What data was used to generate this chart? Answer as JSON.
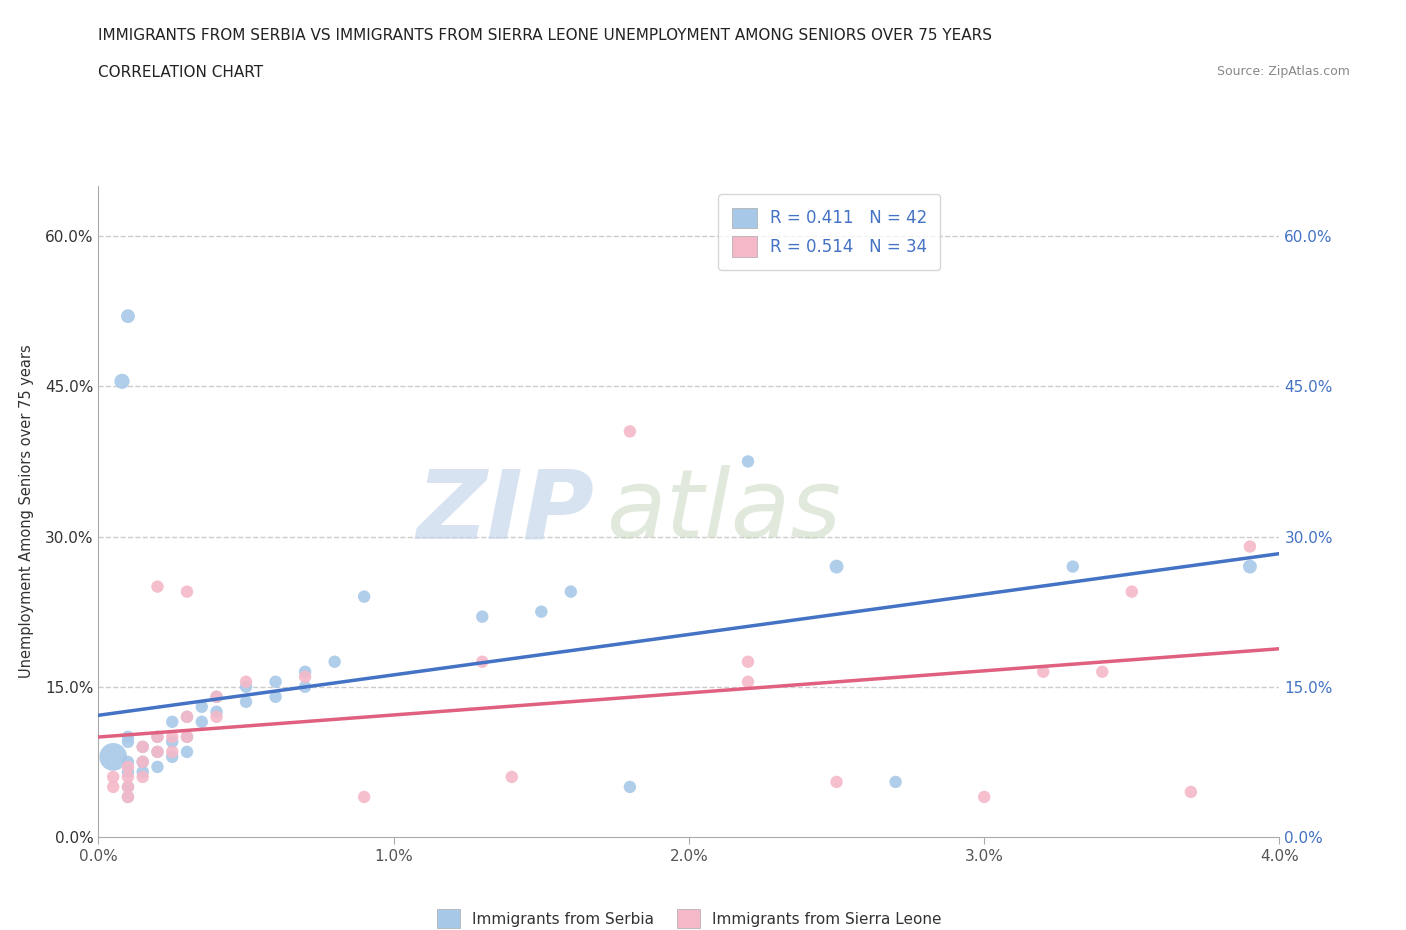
{
  "title_line1": "IMMIGRANTS FROM SERBIA VS IMMIGRANTS FROM SIERRA LEONE UNEMPLOYMENT AMONG SENIORS OVER 75 YEARS",
  "title_line2": "CORRELATION CHART",
  "source_text": "Source: ZipAtlas.com",
  "ylabel": "Unemployment Among Seniors over 75 years",
  "watermark_zip": "ZIP",
  "watermark_atlas": "atlas",
  "xlim": [
    0.0,
    0.04
  ],
  "ylim": [
    0.0,
    0.65
  ],
  "yticks": [
    0.0,
    0.15,
    0.3,
    0.45,
    0.6
  ],
  "ytick_labels": [
    "0.0%",
    "15.0%",
    "30.0%",
    "45.0%",
    "60.0%"
  ],
  "xticks": [
    0.0,
    0.01,
    0.02,
    0.03,
    0.04
  ],
  "xtick_labels": [
    "0.0%",
    "1.0%",
    "2.0%",
    "3.0%",
    "4.0%"
  ],
  "legend_r1": "R = 0.411",
  "legend_n1": "N = 42",
  "legend_r2": "R = 0.514",
  "legend_n2": "N = 34",
  "serbia_color": "#a8c8e8",
  "sierra_leone_color": "#f4b8c8",
  "serbia_line_color": "#4472c4",
  "sierra_leone_line_color": "#e06080",
  "tick_color": "#4472c4",
  "serbia_scatter": [
    [
      0.0005,
      0.08
    ],
    [
      0.0008,
      0.455
    ],
    [
      0.001,
      0.52
    ],
    [
      0.001,
      0.1
    ],
    [
      0.001,
      0.095
    ],
    [
      0.001,
      0.075
    ],
    [
      0.001,
      0.065
    ],
    [
      0.001,
      0.05
    ],
    [
      0.001,
      0.04
    ],
    [
      0.0015,
      0.09
    ],
    [
      0.0015,
      0.075
    ],
    [
      0.0015,
      0.065
    ],
    [
      0.002,
      0.1
    ],
    [
      0.002,
      0.085
    ],
    [
      0.002,
      0.07
    ],
    [
      0.0025,
      0.115
    ],
    [
      0.0025,
      0.095
    ],
    [
      0.0025,
      0.08
    ],
    [
      0.003,
      0.12
    ],
    [
      0.003,
      0.1
    ],
    [
      0.003,
      0.085
    ],
    [
      0.0035,
      0.13
    ],
    [
      0.0035,
      0.115
    ],
    [
      0.004,
      0.14
    ],
    [
      0.004,
      0.125
    ],
    [
      0.005,
      0.15
    ],
    [
      0.005,
      0.135
    ],
    [
      0.006,
      0.155
    ],
    [
      0.006,
      0.14
    ],
    [
      0.007,
      0.165
    ],
    [
      0.007,
      0.15
    ],
    [
      0.008,
      0.175
    ],
    [
      0.009,
      0.24
    ],
    [
      0.013,
      0.22
    ],
    [
      0.015,
      0.225
    ],
    [
      0.016,
      0.245
    ],
    [
      0.018,
      0.05
    ],
    [
      0.022,
      0.375
    ],
    [
      0.025,
      0.27
    ],
    [
      0.027,
      0.055
    ],
    [
      0.033,
      0.27
    ],
    [
      0.039,
      0.27
    ]
  ],
  "sierra_leone_scatter": [
    [
      0.0005,
      0.06
    ],
    [
      0.0005,
      0.05
    ],
    [
      0.001,
      0.07
    ],
    [
      0.001,
      0.06
    ],
    [
      0.001,
      0.05
    ],
    [
      0.001,
      0.04
    ],
    [
      0.0015,
      0.09
    ],
    [
      0.0015,
      0.075
    ],
    [
      0.0015,
      0.06
    ],
    [
      0.002,
      0.25
    ],
    [
      0.002,
      0.1
    ],
    [
      0.002,
      0.085
    ],
    [
      0.0025,
      0.1
    ],
    [
      0.0025,
      0.085
    ],
    [
      0.003,
      0.245
    ],
    [
      0.003,
      0.12
    ],
    [
      0.003,
      0.1
    ],
    [
      0.004,
      0.14
    ],
    [
      0.004,
      0.12
    ],
    [
      0.005,
      0.155
    ],
    [
      0.007,
      0.16
    ],
    [
      0.009,
      0.04
    ],
    [
      0.013,
      0.175
    ],
    [
      0.014,
      0.06
    ],
    [
      0.018,
      0.405
    ],
    [
      0.022,
      0.175
    ],
    [
      0.022,
      0.155
    ],
    [
      0.025,
      0.055
    ],
    [
      0.03,
      0.04
    ],
    [
      0.032,
      0.165
    ],
    [
      0.034,
      0.165
    ],
    [
      0.035,
      0.245
    ],
    [
      0.037,
      0.045
    ],
    [
      0.039,
      0.29
    ]
  ],
  "serbia_sizes": [
    400,
    120,
    100,
    80,
    80,
    80,
    80,
    80,
    80,
    80,
    80,
    80,
    80,
    80,
    80,
    80,
    80,
    80,
    80,
    80,
    80,
    80,
    80,
    80,
    80,
    80,
    80,
    80,
    80,
    80,
    80,
    80,
    80,
    80,
    80,
    80,
    80,
    80,
    100,
    80,
    80,
    100
  ],
  "sierra_leone_sizes": [
    80,
    80,
    80,
    80,
    80,
    80,
    80,
    80,
    80,
    80,
    80,
    80,
    80,
    80,
    80,
    80,
    80,
    80,
    80,
    80,
    80,
    80,
    80,
    80,
    80,
    80,
    80,
    80,
    80,
    80,
    80,
    80,
    80,
    80
  ]
}
